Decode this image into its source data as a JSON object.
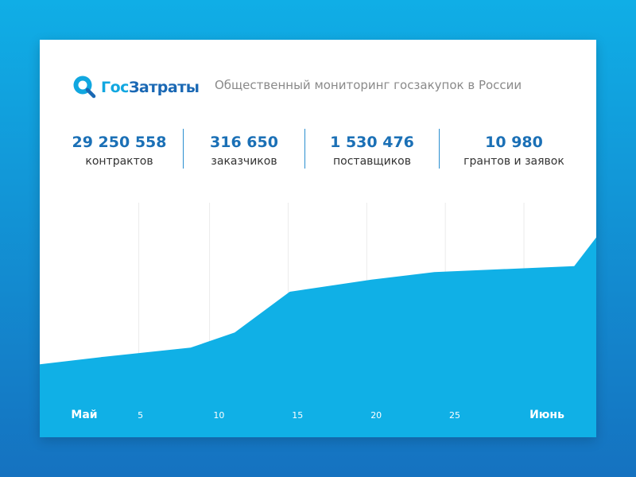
{
  "header": {
    "logo": {
      "part1": "Гос",
      "part2": "Затраты"
    },
    "tagline": "Общественный мониторинг госзакупок в России"
  },
  "stats": [
    {
      "value": "29 250 558",
      "label": "контрактов"
    },
    {
      "value": "316 650",
      "label": "заказчиков"
    },
    {
      "value": "1 530 476",
      "label": "поставщиков"
    },
    {
      "value": "10 980",
      "label": "грантов и заявок"
    }
  ],
  "colors": {
    "area": "#10b0e6",
    "background_top": "#10aee6",
    "background_bottom": "#1572c0",
    "stat_value": "#1b70b6",
    "divider": "#2a8fd0",
    "grid": "#ebebeb"
  },
  "chart_data": {
    "type": "area",
    "title": "",
    "xlabel": "",
    "ylabel": "",
    "x_ticks": [
      {
        "day": 1,
        "label": "Май"
      },
      {
        "day": 5,
        "label": "5"
      },
      {
        "day": 10,
        "label": "10"
      },
      {
        "day": 15,
        "label": "15"
      },
      {
        "day": 20,
        "label": "20"
      },
      {
        "day": 25,
        "label": "25"
      },
      {
        "day": 31,
        "label": "Июнь"
      }
    ],
    "x_range": [
      -1.4,
      34
    ],
    "y_range": [
      0,
      100
    ],
    "grid": {
      "vertical": true,
      "horizontal": false
    },
    "series": [
      {
        "points": [
          {
            "x": -1.4,
            "y": 22
          },
          {
            "x": 2.7,
            "y": 27
          },
          {
            "x": 8.2,
            "y": 33
          },
          {
            "x": 11.0,
            "y": 43
          },
          {
            "x": 14.5,
            "y": 70
          },
          {
            "x": 19.7,
            "y": 78
          },
          {
            "x": 23.7,
            "y": 83
          },
          {
            "x": 32.6,
            "y": 87
          },
          {
            "x": 34.0,
            "y": 106
          }
        ]
      }
    ]
  }
}
